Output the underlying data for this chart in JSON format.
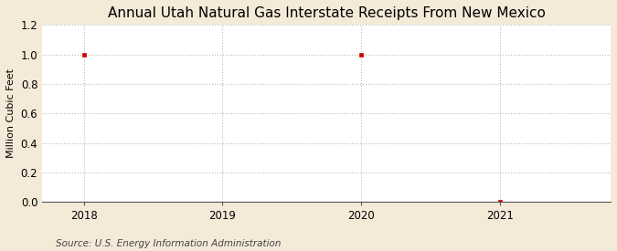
{
  "title": "Annual Utah Natural Gas Interstate Receipts From New Mexico",
  "ylabel": "Million Cubic Feet",
  "source": "Source: U.S. Energy Information Administration",
  "fig_bg_color": "#f5ead8",
  "plot_bg_color": "#ffffff",
  "x_values": [
    2018,
    2020,
    2021
  ],
  "y_values": [
    1.0,
    1.0,
    0.0
  ],
  "xlim": [
    2017.7,
    2021.8
  ],
  "ylim": [
    0.0,
    1.2
  ],
  "yticks": [
    0.0,
    0.2,
    0.4,
    0.6,
    0.8,
    1.0,
    1.2
  ],
  "xticks": [
    2018,
    2019,
    2020,
    2021
  ],
  "marker_color": "#cc0000",
  "marker_style": "s",
  "marker_size": 3.5,
  "grid_color": "#bbbbbb",
  "grid_linestyle": ":",
  "title_fontsize": 11,
  "label_fontsize": 8,
  "tick_fontsize": 8.5,
  "source_fontsize": 7.5
}
